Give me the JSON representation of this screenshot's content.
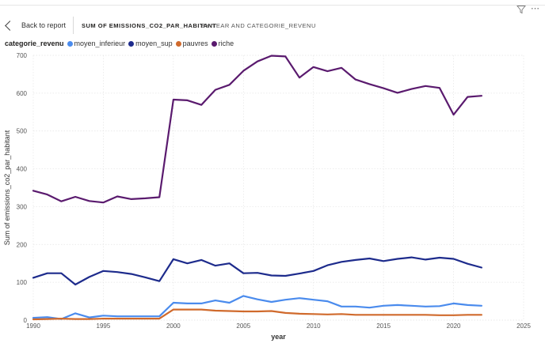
{
  "toolbar": {
    "back_label": "Back to report",
    "title": "SUM OF EMISSIONS_CO2_PAR_HABITANT",
    "subtitle": "BY YEAR AND CATEGORIE_REVENU"
  },
  "chart_data": {
    "type": "line",
    "title": "SUM OF EMISSIONS_CO2_PAR_HABITANT BY YEAR AND CATEGORIE_REVENU",
    "xlabel": "year",
    "ylabel": "Sum of emissions_co2_par_habitant",
    "legend_title": "categorie_revenu",
    "legend_position": "top-left",
    "grid": true,
    "xlim": [
      1990,
      2025
    ],
    "ylim": [
      0,
      700
    ],
    "xticks": [
      1990,
      1995,
      2000,
      2005,
      2010,
      2015,
      2020,
      2025
    ],
    "yticks": [
      0,
      100,
      200,
      300,
      400,
      500,
      600,
      700
    ],
    "x": [
      1990,
      1991,
      1992,
      1993,
      1994,
      1995,
      1996,
      1997,
      1998,
      1999,
      2000,
      2001,
      2002,
      2003,
      2004,
      2005,
      2006,
      2007,
      2008,
      2009,
      2010,
      2011,
      2012,
      2013,
      2014,
      2015,
      2016,
      2017,
      2018,
      2019,
      2020,
      2021,
      2022
    ],
    "series": [
      {
        "name": "moyen_inferieur",
        "color": "#4a8bed",
        "values": [
          6,
          8,
          3,
          18,
          7,
          12,
          10,
          10,
          10,
          10,
          46,
          44,
          44,
          52,
          46,
          64,
          55,
          48,
          54,
          58,
          54,
          50,
          36,
          36,
          33,
          38,
          40,
          38,
          36,
          37,
          44,
          40,
          38
        ]
      },
      {
        "name": "moyen_sup",
        "color": "#1d2b8c",
        "values": [
          112,
          124,
          124,
          94,
          114,
          130,
          127,
          122,
          113,
          103,
          161,
          150,
          159,
          144,
          150,
          124,
          125,
          118,
          117,
          123,
          130,
          145,
          154,
          159,
          163,
          156,
          162,
          166,
          160,
          165,
          162,
          149,
          139
        ]
      },
      {
        "name": "pauvres",
        "color": "#d06a2c",
        "values": [
          2,
          3,
          4,
          3,
          3,
          4,
          4,
          4,
          4,
          4,
          28,
          28,
          28,
          25,
          24,
          23,
          23,
          24,
          19,
          17,
          16,
          15,
          16,
          14,
          14,
          14,
          14,
          14,
          14,
          13,
          13,
          14,
          14
        ]
      },
      {
        "name": "riche",
        "color": "#5a1a6e",
        "values": [
          342,
          332,
          314,
          326,
          315,
          311,
          327,
          320,
          322,
          325,
          583,
          581,
          569,
          609,
          622,
          659,
          684,
          699,
          697,
          641,
          669,
          658,
          667,
          636,
          624,
          613,
          601,
          611,
          619,
          614,
          543,
          590,
          593
        ]
      }
    ]
  },
  "icons": {
    "filter": "filter-icon",
    "more": "more-options-icon",
    "back": "chevron-left-icon"
  }
}
